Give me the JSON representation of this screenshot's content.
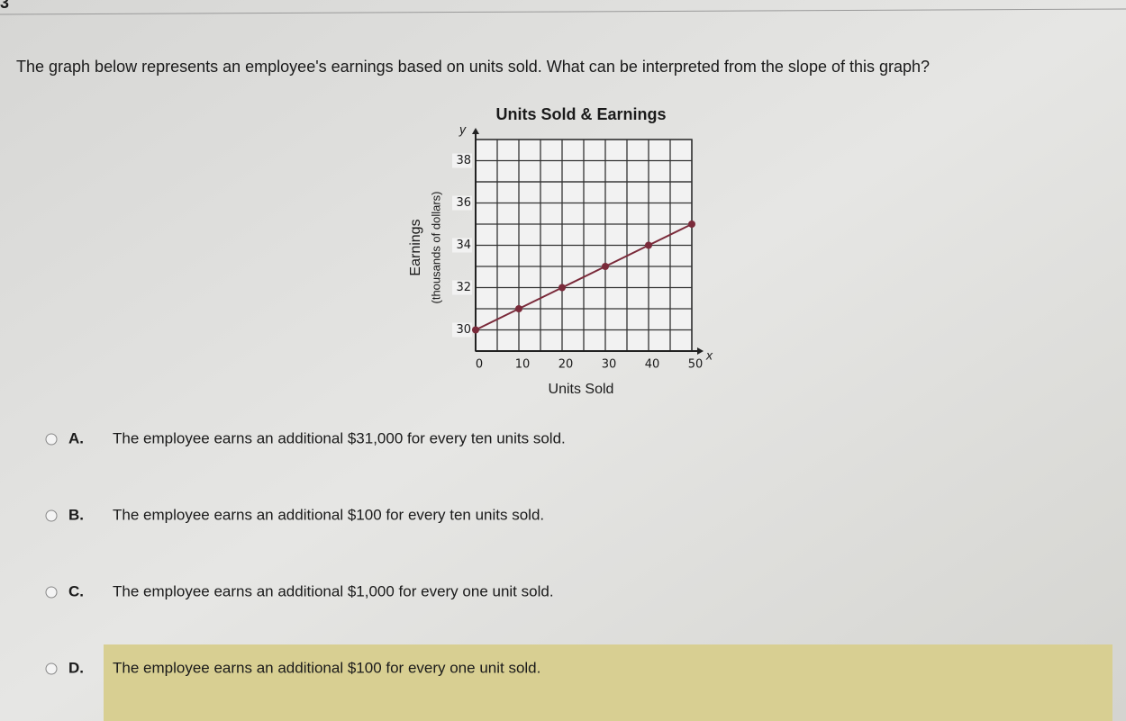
{
  "question_number": "3",
  "question": "The graph below represents an employee's earnings based on units sold. What can be interpreted from the slope of this graph?",
  "chart_data": {
    "type": "line",
    "title": "Units Sold & Earnings",
    "x_label": "Units Sold",
    "y_label": [
      "Earnings",
      "(thousands of dollars)"
    ],
    "x_axis_letter": "x",
    "y_axis_letter": "y",
    "x": [
      0,
      10,
      20,
      30,
      40,
      50
    ],
    "values": [
      30,
      31,
      32,
      33,
      34,
      35
    ],
    "color": "#7a2a3a",
    "xlim": [
      0,
      50
    ],
    "xticks": [
      0,
      10,
      20,
      30,
      40,
      50
    ],
    "ylim": [
      29,
      39
    ],
    "yticks": [
      30,
      32,
      34,
      36,
      38
    ],
    "grid": true
  },
  "options": [
    {
      "letter": "A.",
      "text": "The employee earns an additional $31,000 for every ten units sold."
    },
    {
      "letter": "B.",
      "text": "The employee earns an additional $100 for every ten units sold."
    },
    {
      "letter": "C.",
      "text": "The employee earns an additional $1,000 for every one unit sold."
    },
    {
      "letter": "D.",
      "text": "The employee earns an additional $100 for every one unit sold."
    }
  ]
}
